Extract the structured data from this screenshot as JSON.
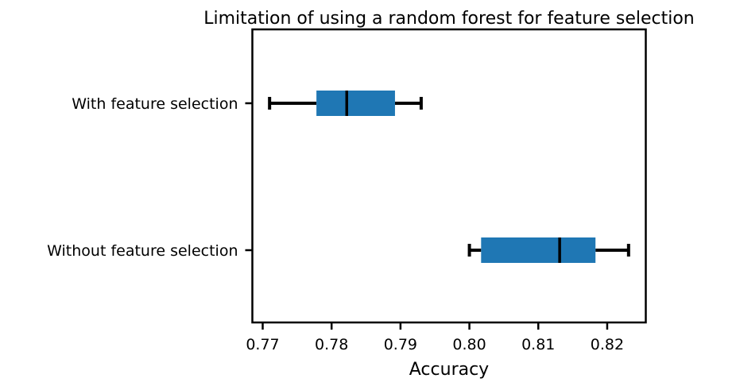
{
  "chart_data": {
    "type": "boxplot",
    "orientation": "horizontal",
    "title": "Limitation of using a random forest for feature selection",
    "xlabel": "Accuracy",
    "ylabel": "",
    "xlim": [
      0.7685,
      0.8256
    ],
    "xticks": [
      0.77,
      0.78,
      0.79,
      0.8,
      0.81,
      0.82
    ],
    "xtick_labels": [
      "0.77",
      "0.78",
      "0.79",
      "0.80",
      "0.81",
      "0.82"
    ],
    "grid": false,
    "box_color": "#1f77b4",
    "categories": [
      "With feature selection",
      "Without feature selection"
    ],
    "boxes": [
      {
        "label": "With feature selection",
        "whisker_low": 0.771,
        "q1": 0.7778,
        "median": 0.7822,
        "q3": 0.7892,
        "whisker_high": 0.793
      },
      {
        "label": "Without feature selection",
        "whisker_low": 0.8,
        "q1": 0.8017,
        "median": 0.8131,
        "q3": 0.8183,
        "whisker_high": 0.8231
      }
    ]
  }
}
